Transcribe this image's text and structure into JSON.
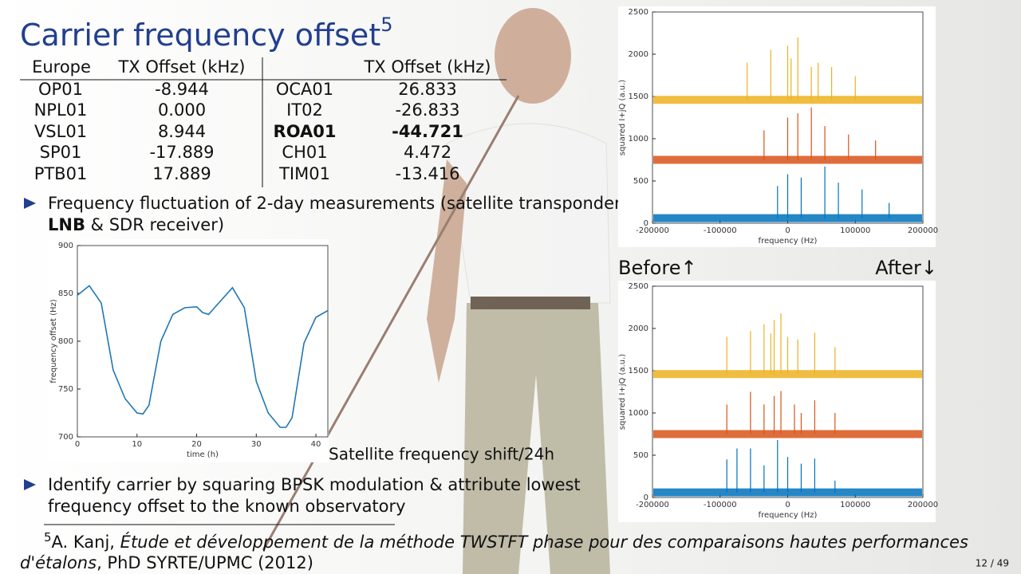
{
  "slide": {
    "title": "Carrier frequency offset",
    "title_footnote_mark": "5",
    "table": {
      "headers": [
        "Europe",
        "TX Offset (kHz)",
        "TX Offset (kHz)"
      ],
      "rows": [
        [
          "OP01",
          "-8.944",
          "OCA01",
          "26.833"
        ],
        [
          "NPL01",
          "0.000",
          "IT02",
          "-26.833"
        ],
        [
          "VSL01",
          "8.944",
          "ROA01",
          "-44.721"
        ],
        [
          "SP01",
          "-17.889",
          "CH01",
          "4.472"
        ],
        [
          "PTB01",
          "17.889",
          "TIM01",
          "-13.416"
        ]
      ],
      "bold_cells": [
        [
          2,
          2
        ],
        [
          2,
          3
        ]
      ]
    },
    "bullets": [
      {
        "parts": [
          "Frequency fluctuation of 2-day measurements (satellite transponder,",
          "LNB",
          " & SDR receiver)"
        ]
      },
      {
        "parts": [
          "Identify carrier by squaring BPSK modulation & attribute lowest",
          "frequency offset to the known observatory"
        ]
      }
    ],
    "captions": {
      "before": "Before↑",
      "after": "After↓",
      "satellite": "Satellite frequency shift/24h"
    },
    "footnote": {
      "mark": "5",
      "parts": [
        "A. Kanj, ",
        "Étude et développement de la méthode TWSTFT phase pour des comparaisons hautes performances",
        "d'étalons",
        ", PhD SYRTE/UPMC (2012)"
      ]
    },
    "page_number": "12 / 49"
  },
  "chart_data": [
    {
      "type": "line",
      "x_label": "time (h)",
      "y_label": "frequency offset (Hz)",
      "color": "#1f77b4",
      "x": [
        0,
        2,
        4,
        6,
        8,
        10,
        11,
        12,
        14,
        16,
        18,
        20,
        21,
        22,
        23,
        26,
        28,
        30,
        32,
        34,
        35,
        36,
        38,
        40,
        42
      ],
      "values": [
        848,
        858,
        840,
        770,
        740,
        725,
        724,
        733,
        800,
        828,
        835,
        836,
        830,
        828,
        835,
        856,
        835,
        758,
        725,
        710,
        710,
        720,
        798,
        825,
        832
      ],
      "xlim": [
        0,
        42
      ],
      "xticks": [
        0,
        10,
        20,
        30,
        40
      ],
      "ylim": [
        700,
        900
      ],
      "yticks": [
        700,
        750,
        800,
        850,
        900
      ]
    },
    {
      "type": "spectrum",
      "x_label": "frequency (Hz)",
      "y_label": "squared I+jQ (a.u.)",
      "xlim": [
        -200000,
        200000
      ],
      "xticks": [
        -200000,
        -100000,
        0,
        100000,
        200000
      ],
      "ylim": [
        0,
        2500
      ],
      "yticks": [
        0,
        500,
        1000,
        1500,
        2000,
        2500
      ],
      "series": [
        {
          "color": "#edb120",
          "baseline": 1460,
          "x": [
            -60000,
            -25000,
            0,
            5000,
            15000,
            35000,
            45000,
            65000,
            100000
          ],
          "values": [
            1900,
            2050,
            2100,
            1950,
            2200,
            1850,
            1900,
            1850,
            1740
          ]
        },
        {
          "color": "#d95319",
          "baseline": 750,
          "x": [
            -35000,
            0,
            15000,
            35000,
            55000,
            90000,
            130000
          ],
          "values": [
            1100,
            1250,
            1300,
            1370,
            1150,
            1050,
            980
          ]
        },
        {
          "color": "#0072bd",
          "baseline": 60,
          "x": [
            -15000,
            0,
            20000,
            55000,
            75000,
            110000,
            150000
          ],
          "values": [
            440,
            580,
            540,
            670,
            480,
            400,
            240
          ]
        }
      ]
    },
    {
      "type": "spectrum",
      "x_label": "frequency (Hz)",
      "y_label": "squared I+jQ (a.u.)",
      "xlim": [
        -200000,
        200000
      ],
      "xticks": [
        -200000,
        -100000,
        0,
        100000,
        200000
      ],
      "ylim": [
        0,
        2500
      ],
      "yticks": [
        0,
        500,
        1000,
        1500,
        2000,
        2500
      ],
      "series": [
        {
          "color": "#edb120",
          "baseline": 1460,
          "x": [
            -90000,
            -55000,
            -35000,
            -25000,
            -20000,
            -10000,
            0,
            15000,
            40000,
            70000
          ],
          "values": [
            1900,
            1970,
            2050,
            1940,
            2100,
            2180,
            1900,
            1870,
            1950,
            1780
          ]
        },
        {
          "color": "#d95319",
          "baseline": 750,
          "x": [
            -90000,
            -55000,
            -35000,
            -20000,
            -10000,
            10000,
            20000,
            40000,
            70000
          ],
          "values": [
            1100,
            1250,
            1100,
            1200,
            1260,
            1100,
            1000,
            1150,
            1000
          ]
        },
        {
          "color": "#0072bd",
          "baseline": 60,
          "x": [
            -90000,
            -75000,
            -55000,
            -35000,
            -15000,
            0,
            20000,
            40000,
            70000
          ],
          "values": [
            450,
            580,
            580,
            380,
            680,
            480,
            400,
            460,
            200
          ]
        }
      ]
    }
  ]
}
